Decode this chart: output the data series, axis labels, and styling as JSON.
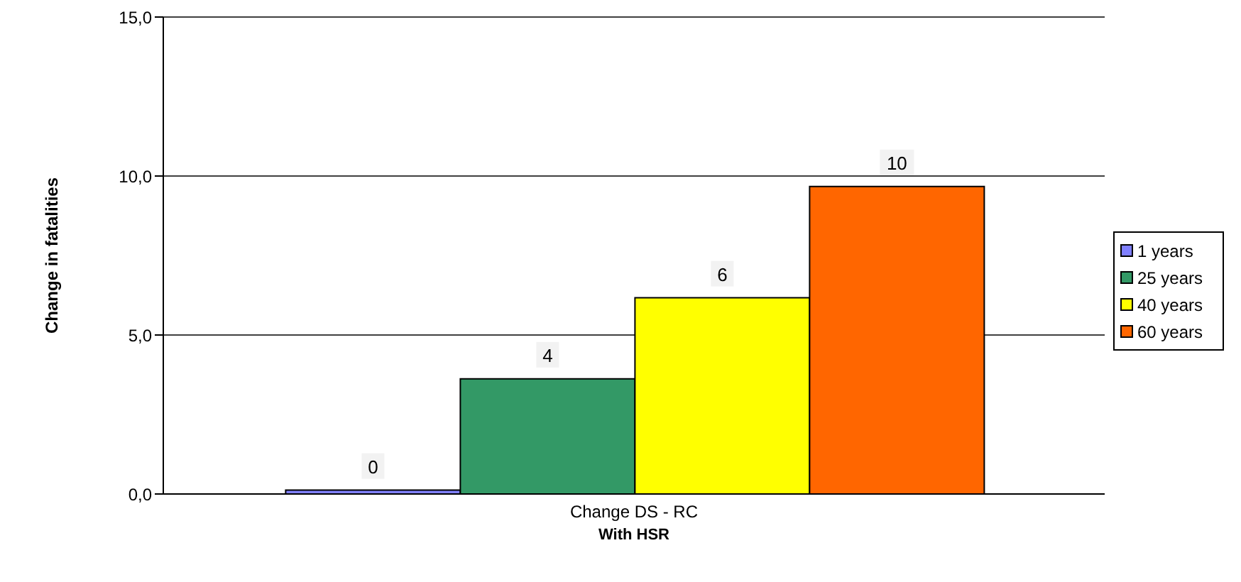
{
  "chart_data": {
    "type": "bar",
    "ylabel": "Change in fatalities",
    "xlabel": "With HSR",
    "categories": [
      "Change DS - RC"
    ],
    "series": [
      {
        "name": "1 years",
        "color": "#8080ff",
        "values": [
          0.12
        ],
        "value_labels": [
          "0"
        ]
      },
      {
        "name": "25 years",
        "color": "#339966",
        "values": [
          3.62
        ],
        "value_labels": [
          "4"
        ]
      },
      {
        "name": "40 years",
        "color": "#ffff00",
        "values": [
          6.17
        ],
        "value_labels": [
          "6"
        ]
      },
      {
        "name": "60 years",
        "color": "#ff6600",
        "values": [
          9.67
        ],
        "value_labels": [
          "10"
        ]
      }
    ],
    "ylim": [
      0,
      15
    ],
    "yticks": [
      {
        "value": 0,
        "label": "0,0"
      },
      {
        "value": 5,
        "label": "5,0"
      },
      {
        "value": 10,
        "label": "10,0"
      },
      {
        "value": 15,
        "label": "15,0"
      }
    ],
    "grid": "y",
    "legend": "right"
  }
}
